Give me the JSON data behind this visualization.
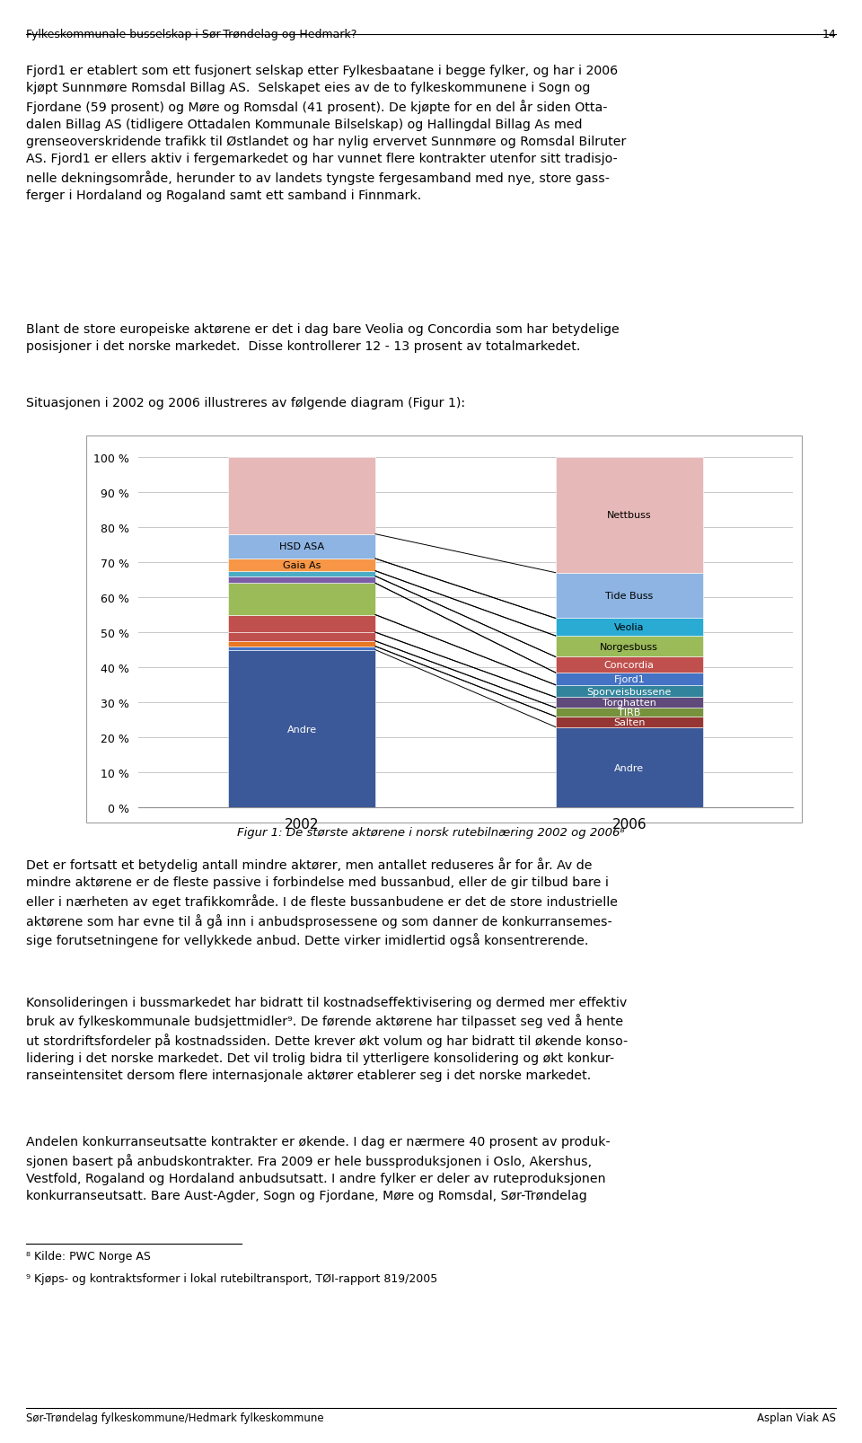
{
  "title": "Figur 1: De største aktørene i norsk rutebilnæring 2002 og 2006",
  "years": [
    "2002",
    "2006"
  ],
  "segments_2002": [
    {
      "label": "Andre",
      "value": 45.0,
      "color": "#3B5998",
      "text_color": "white"
    },
    {
      "label": "",
      "value": 1.0,
      "color": "#4472C4",
      "text_color": "white"
    },
    {
      "label": "",
      "value": 1.5,
      "color": "#E87722",
      "text_color": "white"
    },
    {
      "label": "",
      "value": 2.5,
      "color": "#C0504D",
      "text_color": "white"
    },
    {
      "label": "",
      "value": 5.0,
      "color": "#C0504D",
      "text_color": "white"
    },
    {
      "label": "",
      "value": 9.0,
      "color": "#9BBB59",
      "text_color": "white"
    },
    {
      "label": "",
      "value": 2.0,
      "color": "#7B5EA7",
      "text_color": "white"
    },
    {
      "label": "",
      "value": 1.5,
      "color": "#4BACC6",
      "text_color": "white"
    },
    {
      "label": "Gaia As",
      "value": 3.5,
      "color": "#F79646",
      "text_color": "black"
    },
    {
      "label": "HSD ASA",
      "value": 7.0,
      "color": "#8DB4E2",
      "text_color": "black"
    },
    {
      "label": "",
      "value": 22.0,
      "color": "#E6B9B8",
      "text_color": "black"
    }
  ],
  "segments_2006": [
    {
      "label": "Andre",
      "value": 23.0,
      "color": "#3B5998",
      "text_color": "white"
    },
    {
      "label": "Salten",
      "value": 3.0,
      "color": "#963634",
      "text_color": "white"
    },
    {
      "label": "TIRB",
      "value": 2.5,
      "color": "#76923C",
      "text_color": "white"
    },
    {
      "label": "Torghatten",
      "value": 3.0,
      "color": "#604A7B",
      "text_color": "white"
    },
    {
      "label": "Sporveisbussene",
      "value": 3.5,
      "color": "#31849B",
      "text_color": "white"
    },
    {
      "label": "Fjord1",
      "value": 3.5,
      "color": "#4472C4",
      "text_color": "white"
    },
    {
      "label": "Concordia",
      "value": 4.5,
      "color": "#C0504D",
      "text_color": "white"
    },
    {
      "label": "Norgesbuss",
      "value": 6.0,
      "color": "#9BBB59",
      "text_color": "black"
    },
    {
      "label": "Veolia",
      "value": 5.0,
      "color": "#29ABD4",
      "text_color": "black"
    },
    {
      "label": "Tide Buss",
      "value": 13.0,
      "color": "#8DB4E2",
      "text_color": "black"
    },
    {
      "label": "Nettbuss",
      "value": 33.0,
      "color": "#E6B9B8",
      "text_color": "black"
    }
  ],
  "ylabel_ticks": [
    "0 %",
    "10 %",
    "20 %",
    "30 %",
    "40 %",
    "50 %",
    "60 %",
    "70 %",
    "80 %",
    "90 %",
    "100 %"
  ],
  "caption": "Figur 1: De største aktørene i norsk rutebilnæring 2002 og 2006",
  "bg_color": "#FFFFFF",
  "plot_bg": "#FFFFFF",
  "grid_color": "#C8C8C8",
  "bar_width": 0.45,
  "font_size_bar": 8,
  "font_size_caption": 9
}
